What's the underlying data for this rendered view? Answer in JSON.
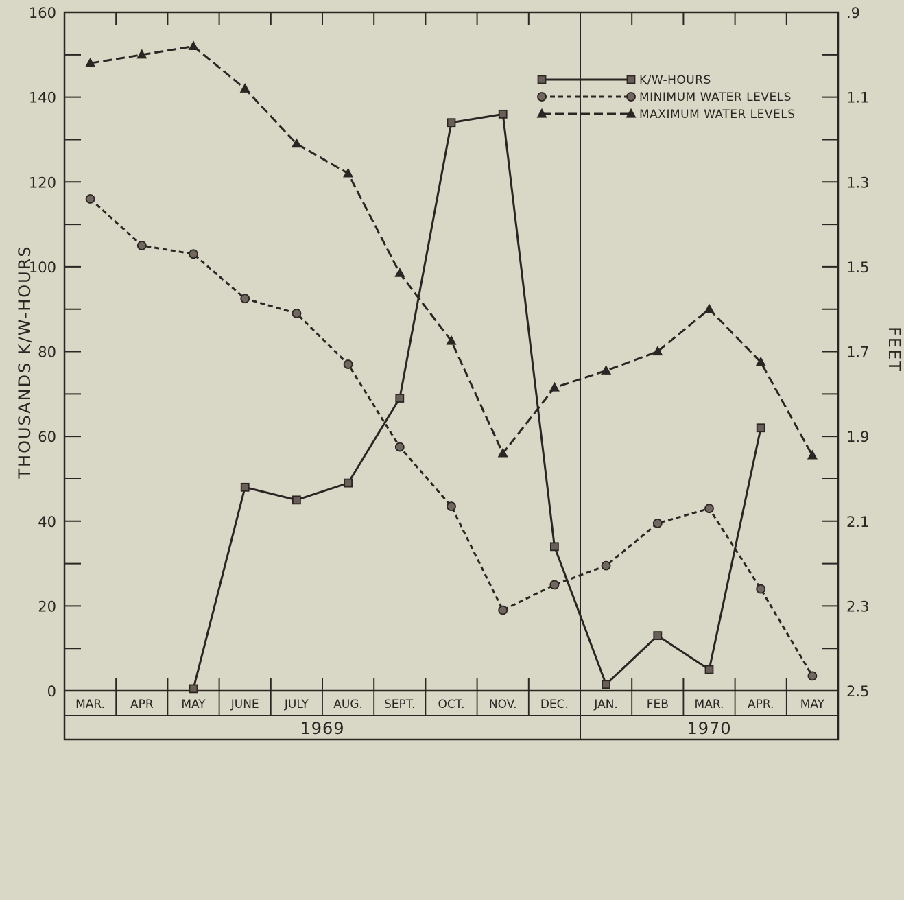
{
  "chart_data": {
    "type": "line",
    "categories": [
      "MAR.",
      "APR",
      "MAY",
      "JUNE",
      "JULY",
      "AUG.",
      "SEPT.",
      "OCT.",
      "NOV.",
      "DEC.",
      "JAN.",
      "FEB",
      "MAR.",
      "APR.",
      "MAY"
    ],
    "year_groups": [
      {
        "label": "1969",
        "first_index": 0,
        "last_index": 9
      },
      {
        "label": "1970",
        "first_index": 10,
        "last_index": 14
      }
    ],
    "left_axis": {
      "label": "THOUSANDS K/W-HOURS",
      "ylim": [
        0,
        160
      ],
      "ticks": [
        0,
        20,
        40,
        60,
        80,
        100,
        120,
        140,
        160
      ],
      "tick_labels": [
        "0",
        "20",
        "40",
        "60",
        "80",
        "100",
        "120",
        "140",
        "160"
      ]
    },
    "right_axis": {
      "label": "FEET",
      "ylim": [
        2.5,
        0.9
      ],
      "inverted": true,
      "ticks": [
        0.9,
        1.1,
        1.3,
        1.5,
        1.7,
        1.9,
        2.1,
        2.3,
        2.5
      ],
      "tick_labels": [
        ".9",
        "1.1",
        "1.3",
        "1.5",
        "1.7",
        "1.9",
        "2.1",
        "2.3",
        "2.5"
      ]
    },
    "series": [
      {
        "name": "K/W-HOURS",
        "axis": "left",
        "marker": "square",
        "line": "solid",
        "values": [
          null,
          null,
          0.5,
          48,
          45,
          49,
          69,
          134,
          136,
          34,
          1.5,
          13,
          5,
          62,
          null
        ]
      },
      {
        "name": "MINIMUM WATER LEVELS",
        "axis": "left",
        "marker": "circle",
        "line": "short-dash",
        "values": [
          116,
          105,
          103,
          92.5,
          89,
          77,
          57.5,
          43.5,
          19,
          25,
          29.5,
          39.5,
          43,
          24,
          3.5
        ]
      },
      {
        "name": "MAXIMUM WATER LEVELS",
        "axis": "left",
        "marker": "triangle",
        "line": "long-dash",
        "values": [
          148,
          150,
          152,
          142,
          129,
          122,
          98.5,
          82.5,
          56,
          71.5,
          75.5,
          80,
          90,
          77.5,
          55.5
        ]
      }
    ],
    "legend_placement": "top-right",
    "grid": false
  }
}
